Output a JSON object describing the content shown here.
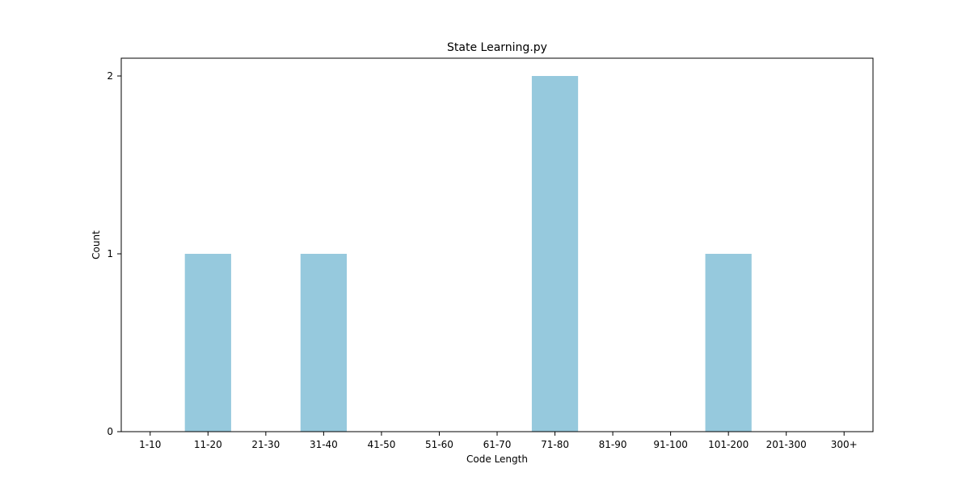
{
  "chart_data": {
    "type": "bar",
    "title": "State Learning.py",
    "xlabel": "Code Length",
    "ylabel": "Count",
    "categories": [
      "1-10",
      "11-20",
      "21-30",
      "31-40",
      "41-50",
      "51-60",
      "61-70",
      "71-80",
      "81-90",
      "91-100",
      "101-200",
      "201-300",
      "300+"
    ],
    "values": [
      0,
      1,
      0,
      1,
      0,
      0,
      0,
      2,
      0,
      0,
      1,
      0,
      0
    ],
    "ylim": [
      0,
      2.1
    ],
    "yticks": [
      0,
      1,
      2
    ],
    "bar_color": "#96c9dd",
    "grid": false,
    "legend": false
  }
}
